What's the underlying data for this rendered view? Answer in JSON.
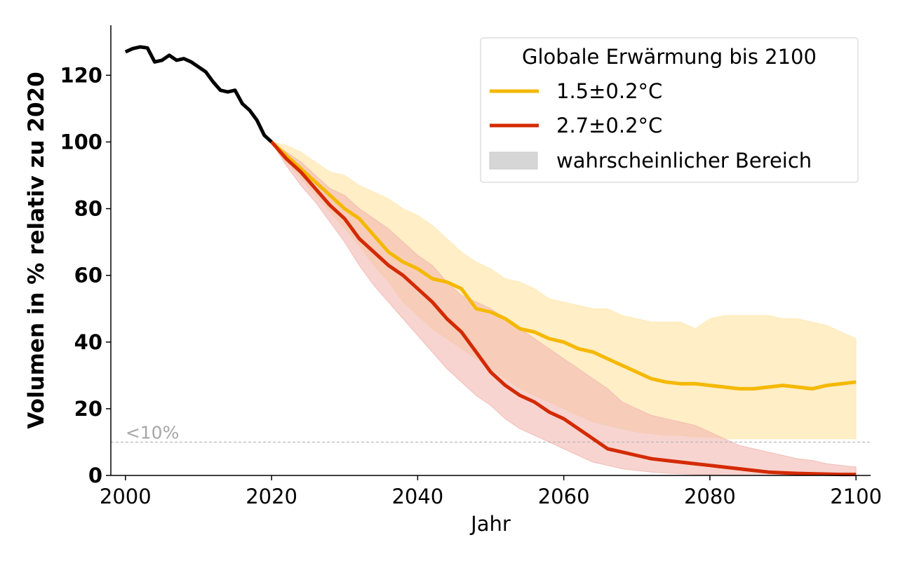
{
  "chart_data": {
    "type": "line",
    "xlabel": "Jahr",
    "ylabel": "Volumen in % relativ zu 2020",
    "xlim": [
      1998,
      2102
    ],
    "ylim": [
      0,
      135
    ],
    "xticks": [
      2000,
      2020,
      2040,
      2060,
      2080,
      2100
    ],
    "yticks": [
      0,
      20,
      40,
      60,
      80,
      100,
      120
    ],
    "grid": false,
    "legend": {
      "title": "Globale Erwärmung bis 2100",
      "placement": "top-right",
      "range_label": "wahrscheinlicher Bereich"
    },
    "colors": {
      "historical": "#000000",
      "s15": "#f5b800",
      "s15_band": "#ffeab8",
      "s27": "#d42a00",
      "s27_band": "#f2b8b0",
      "threshold": "#b3b3b3"
    },
    "threshold": {
      "y": 10,
      "label": "<10%"
    },
    "series": [
      {
        "name": "",
        "role": "historical",
        "x": [
          2000,
          2001,
          2002,
          2003,
          2004,
          2005,
          2006,
          2007,
          2008,
          2009,
          2010,
          2011,
          2012,
          2013,
          2014,
          2015,
          2016,
          2017,
          2018,
          2019,
          2020
        ],
        "y": [
          127,
          128,
          128.5,
          128.2,
          124,
          124.5,
          126,
          124.5,
          125,
          124,
          122.5,
          121,
          118,
          115.5,
          115,
          115.5,
          111.5,
          109.5,
          106.5,
          102,
          100
        ]
      },
      {
        "name": "1.5±0.2°C",
        "role": "s15",
        "x": [
          2020,
          2022,
          2024,
          2026,
          2028,
          2030,
          2032,
          2034,
          2036,
          2038,
          2040,
          2042,
          2044,
          2046,
          2048,
          2050,
          2052,
          2054,
          2056,
          2058,
          2060,
          2062,
          2064,
          2066,
          2068,
          2070,
          2072,
          2074,
          2076,
          2078,
          2080,
          2082,
          2084,
          2086,
          2088,
          2090,
          2092,
          2094,
          2096,
          2098,
          2100
        ],
        "y": [
          100,
          96,
          92,
          88,
          84,
          80,
          77,
          72,
          67,
          64,
          62,
          59,
          58,
          56,
          50,
          49,
          47,
          44,
          43,
          41,
          40,
          38,
          37,
          35,
          33,
          31,
          29,
          28,
          27.5,
          27.5,
          27,
          26.5,
          26,
          26,
          26.5,
          27,
          26.5,
          26,
          27,
          27.5,
          28
        ]
      },
      {
        "name": "",
        "role": "s15_upper",
        "x": [
          2020,
          2022,
          2024,
          2026,
          2028,
          2030,
          2032,
          2034,
          2036,
          2038,
          2040,
          2042,
          2044,
          2046,
          2048,
          2050,
          2052,
          2054,
          2056,
          2058,
          2060,
          2062,
          2064,
          2066,
          2068,
          2070,
          2072,
          2074,
          2076,
          2078,
          2080,
          2082,
          2084,
          2086,
          2088,
          2090,
          2092,
          2094,
          2096,
          2098,
          2100
        ],
        "y": [
          100,
          99,
          97,
          94,
          91,
          90,
          87,
          85,
          83,
          80,
          78,
          75,
          71,
          67,
          64,
          62,
          59,
          58,
          56,
          53,
          52,
          51,
          50,
          50,
          48,
          47,
          46,
          46,
          46,
          44,
          47,
          48,
          48,
          48,
          48,
          47,
          47,
          46,
          45,
          43,
          41
        ]
      },
      {
        "name": "",
        "role": "s15_lower",
        "x": [
          2020,
          2022,
          2024,
          2026,
          2028,
          2030,
          2032,
          2034,
          2036,
          2038,
          2040,
          2042,
          2044,
          2046,
          2048,
          2050,
          2052,
          2054,
          2056,
          2058,
          2060,
          2062,
          2064,
          2066,
          2068,
          2070,
          2072,
          2074,
          2076,
          2078,
          2080,
          2082,
          2084,
          2086,
          2088,
          2090,
          2092,
          2094,
          2096,
          2098,
          2100
        ],
        "y": [
          100,
          94,
          89,
          84,
          79,
          74,
          69,
          63,
          58,
          52,
          48,
          44,
          41,
          38,
          35,
          32,
          29,
          26,
          24,
          22,
          20,
          18,
          16,
          15,
          14,
          13,
          12.5,
          12,
          12,
          11.5,
          11.5,
          11,
          11,
          11,
          11,
          11,
          11,
          11,
          11,
          11,
          11
        ]
      },
      {
        "name": "2.7±0.2°C",
        "role": "s27",
        "x": [
          2020,
          2022,
          2024,
          2026,
          2028,
          2030,
          2032,
          2034,
          2036,
          2038,
          2040,
          2042,
          2044,
          2046,
          2048,
          2050,
          2052,
          2054,
          2056,
          2058,
          2060,
          2062,
          2064,
          2066,
          2068,
          2070,
          2072,
          2074,
          2076,
          2078,
          2080,
          2082,
          2084,
          2086,
          2088,
          2090,
          2092,
          2094,
          2096,
          2098,
          2100
        ],
        "y": [
          100,
          95,
          91,
          86,
          81,
          77,
          71,
          67,
          63,
          60,
          56,
          52,
          47,
          43,
          37,
          31,
          27,
          24,
          22,
          19,
          17,
          14,
          11,
          8,
          7,
          6,
          5,
          4.5,
          4,
          3.5,
          3,
          2.5,
          2,
          1.5,
          1,
          0.8,
          0.6,
          0.5,
          0.4,
          0.3,
          0.3
        ]
      },
      {
        "name": "",
        "role": "s27_upper",
        "x": [
          2020,
          2022,
          2024,
          2026,
          2028,
          2030,
          2032,
          2034,
          2036,
          2038,
          2040,
          2042,
          2044,
          2046,
          2048,
          2050,
          2052,
          2054,
          2056,
          2058,
          2060,
          2062,
          2064,
          2066,
          2068,
          2070,
          2072,
          2074,
          2076,
          2078,
          2080,
          2082,
          2084,
          2086,
          2088,
          2090,
          2092,
          2094,
          2096,
          2098,
          2100
        ],
        "y": [
          100,
          97,
          94,
          90,
          86,
          84,
          80,
          77,
          74,
          70,
          66,
          63,
          58,
          54,
          52,
          50,
          47,
          44,
          41,
          38,
          35,
          32,
          29,
          26,
          22,
          20,
          18,
          17,
          16,
          15,
          13,
          11,
          9,
          8,
          7,
          6,
          5,
          4.5,
          3.5,
          3,
          2.5
        ]
      },
      {
        "name": "",
        "role": "s27_lower",
        "x": [
          2020,
          2022,
          2024,
          2026,
          2028,
          2030,
          2032,
          2034,
          2036,
          2038,
          2040,
          2042,
          2044,
          2046,
          2048,
          2050,
          2052,
          2054,
          2056,
          2058,
          2060,
          2062,
          2064,
          2066,
          2068,
          2070,
          2072,
          2074,
          2076,
          2078,
          2080,
          2082,
          2084,
          2086,
          2088,
          2090,
          2092,
          2094,
          2096,
          2098,
          2100
        ],
        "y": [
          100,
          93,
          87,
          82,
          76,
          70,
          63,
          57,
          52,
          47,
          42,
          37,
          32,
          28,
          24,
          21,
          17,
          14,
          12,
          10,
          8,
          6,
          4,
          3,
          2,
          1.5,
          1,
          0.7,
          0.5,
          0.3,
          0.2,
          0.1,
          0,
          0,
          0,
          0,
          0,
          0,
          0,
          0,
          0
        ]
      }
    ]
  }
}
